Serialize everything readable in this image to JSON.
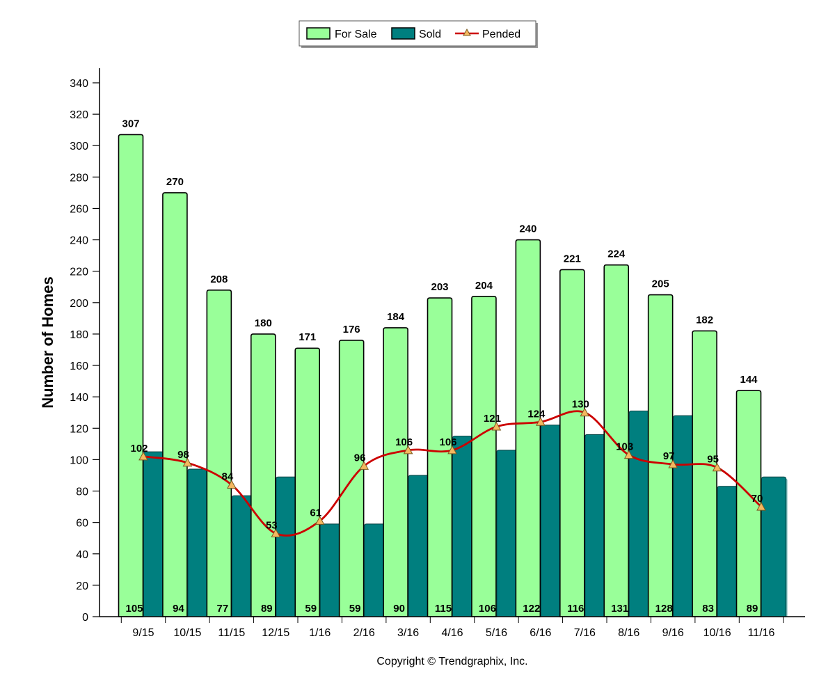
{
  "chart_data": {
    "type": "bar",
    "ylabel": "Number of Homes",
    "ylim": [
      0,
      340
    ],
    "ytick_step": 20,
    "categories": [
      "9/15",
      "10/15",
      "11/15",
      "12/15",
      "1/16",
      "2/16",
      "3/16",
      "4/16",
      "5/16",
      "6/16",
      "7/16",
      "8/16",
      "9/16",
      "10/16",
      "11/16"
    ],
    "series": [
      {
        "name": "For Sale",
        "kind": "bar",
        "color": "#99ff99",
        "values": [
          307,
          270,
          208,
          180,
          171,
          176,
          184,
          203,
          204,
          240,
          221,
          224,
          205,
          182,
          144
        ]
      },
      {
        "name": "Sold",
        "kind": "bar",
        "color": "#007f7f",
        "values": [
          105,
          94,
          77,
          89,
          59,
          59,
          90,
          115,
          106,
          122,
          116,
          131,
          128,
          83,
          89
        ]
      },
      {
        "name": "Pended",
        "kind": "line",
        "color": "#cc0000",
        "marker_color": "#f4b860",
        "values": [
          102,
          98,
          84,
          53,
          61,
          96,
          106,
          106,
          121,
          124,
          130,
          103,
          97,
          95,
          70
        ]
      }
    ],
    "legend_position": "top-center",
    "grid": false
  },
  "copyright": "Copyright © Trendgraphix, Inc."
}
